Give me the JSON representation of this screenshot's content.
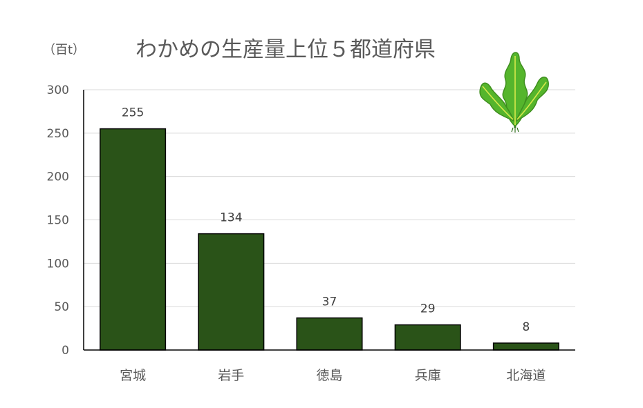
{
  "chart_data": {
    "type": "bar",
    "title": "わかめの生産量上位５都道府県",
    "ylabel": "（百t）",
    "xlabel": "",
    "categories": [
      "宮城",
      "岩手",
      "徳島",
      "兵庫",
      "北海道"
    ],
    "values": [
      255,
      134,
      37,
      29,
      8
    ],
    "ylim": [
      0,
      300
    ],
    "yticks": [
      0,
      50,
      100,
      150,
      200,
      250,
      300
    ],
    "grid": true,
    "legend": "none",
    "data_labels": true,
    "bar_color": "#2a5318",
    "bar_edge_color": "#000000"
  },
  "decoration": {
    "icon": "wakame-seaweed-icon",
    "leaf_color": "#55b52c",
    "vein_color": "#d7e84a",
    "stem_color": "#2f6e1a"
  }
}
